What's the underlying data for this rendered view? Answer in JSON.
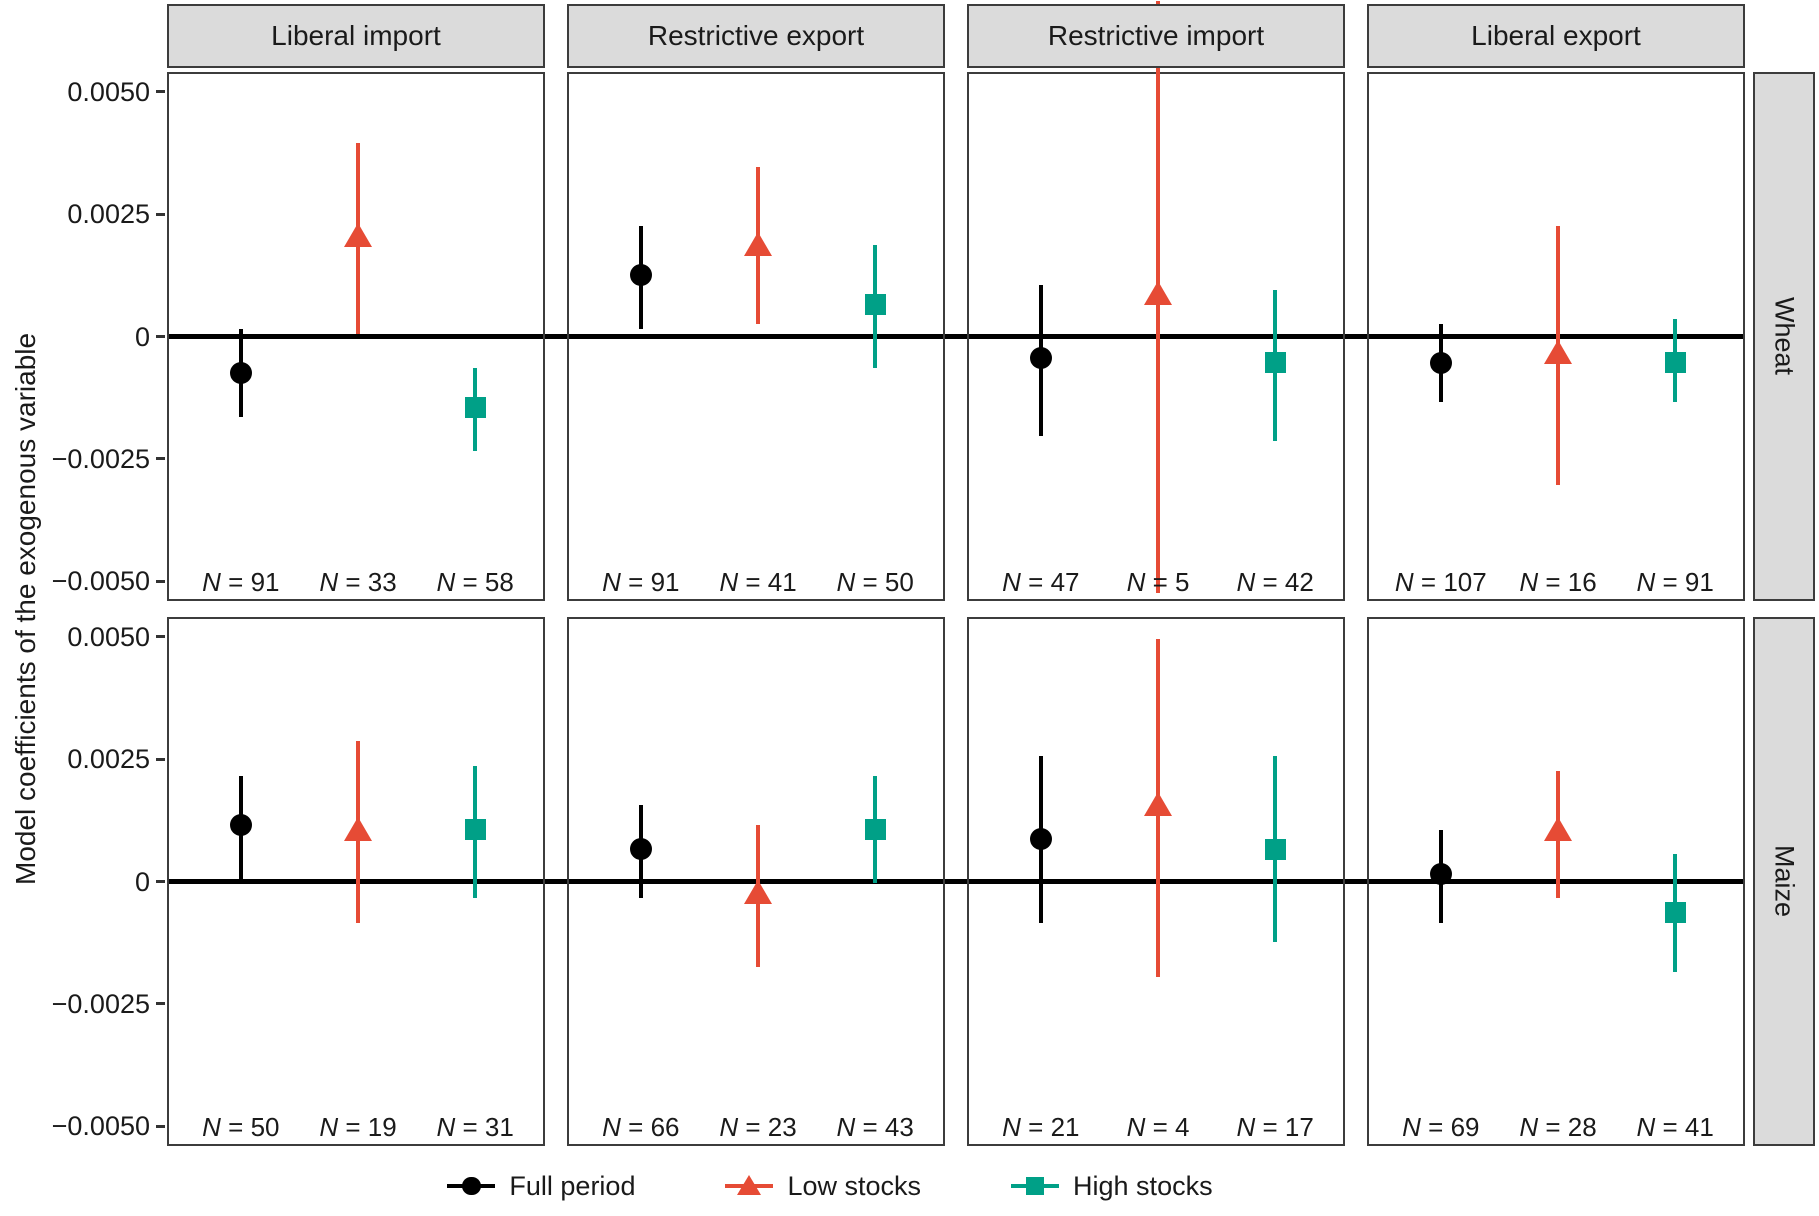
{
  "chart_data": {
    "type": "scatter",
    "subtype": "faceted-errorbar-coefficient-plot",
    "ylabel": "Model coefficients of the exogenous variable",
    "facet_cols": [
      "Liberal import",
      "Restrictive export",
      "Restrictive import",
      "Liberal export"
    ],
    "facet_rows": [
      "Wheat",
      "Maize"
    ],
    "ylim": [
      -0.0054,
      0.0054
    ],
    "grid": "off",
    "yticks": [
      {
        "value": 0.005,
        "label": "0.0050"
      },
      {
        "value": 0.0025,
        "label": "0.0025"
      },
      {
        "value": 0,
        "label": "0"
      },
      {
        "value": -0.0025,
        "label": "−0.0025"
      },
      {
        "value": -0.005,
        "label": "−0.0050"
      }
    ],
    "zero_reference_line": 0,
    "panels": [
      {
        "row": "Wheat",
        "col": "Liberal import",
        "points": [
          {
            "series": "Full period",
            "est": -0.0007,
            "lo": -0.0016,
            "hi": 0.0002,
            "n_label": "N = 91"
          },
          {
            "series": "Low stocks",
            "est": 0.0021,
            "lo": 0.0001,
            "hi": 0.004,
            "n_label": "N = 33"
          },
          {
            "series": "High stocks",
            "est": -0.0014,
            "lo": -0.0023,
            "hi": -0.0006,
            "n_label": "N = 58"
          }
        ]
      },
      {
        "row": "Wheat",
        "col": "Restrictive export",
        "points": [
          {
            "series": "Full period",
            "est": 0.0013,
            "lo": 0.0002,
            "hi": 0.0023,
            "n_label": "N = 91"
          },
          {
            "series": "Low stocks",
            "est": 0.0019,
            "lo": 0.0003,
            "hi": 0.0035,
            "n_label": "N = 41"
          },
          {
            "series": "High stocks",
            "est": 0.0007,
            "lo": -0.0006,
            "hi": 0.0019,
            "n_label": "N = 50"
          }
        ]
      },
      {
        "row": "Wheat",
        "col": "Restrictive import",
        "points": [
          {
            "series": "Full period",
            "est": -0.0004,
            "lo": -0.002,
            "hi": 0.0011,
            "n_label": "N = 47"
          },
          {
            "series": "Low stocks",
            "est": 0.0009,
            "lo": -0.0052,
            "hi": 0.0069,
            "hi_clipped": true,
            "n_label": "N = 5"
          },
          {
            "series": "High stocks",
            "est": -0.0005,
            "lo": -0.0021,
            "hi": 0.001,
            "n_label": "N = 42"
          }
        ]
      },
      {
        "row": "Wheat",
        "col": "Liberal export",
        "points": [
          {
            "series": "Full period",
            "est": -0.0005,
            "lo": -0.0013,
            "hi": 0.0003,
            "n_label": "N = 107"
          },
          {
            "series": "Low stocks",
            "est": -0.0003,
            "lo": -0.003,
            "hi": 0.0023,
            "n_label": "N = 16"
          },
          {
            "series": "High stocks",
            "est": -0.0005,
            "lo": -0.0013,
            "hi": 0.0004,
            "n_label": "N = 91"
          }
        ]
      },
      {
        "row": "Maize",
        "col": "Liberal import",
        "points": [
          {
            "series": "Full period",
            "est": 0.0012,
            "lo": 0.0,
            "hi": 0.0022,
            "n_label": "N = 50"
          },
          {
            "series": "Low stocks",
            "est": 0.0011,
            "lo": -0.0008,
            "hi": 0.0029,
            "n_label": "N = 19"
          },
          {
            "series": "High stocks",
            "est": 0.0011,
            "lo": -0.0003,
            "hi": 0.0024,
            "n_label": "N = 31"
          }
        ]
      },
      {
        "row": "Maize",
        "col": "Restrictive export",
        "points": [
          {
            "series": "Full period",
            "est": 0.0007,
            "lo": -0.0003,
            "hi": 0.0016,
            "n_label": "N = 66"
          },
          {
            "series": "Low stocks",
            "est": -0.0002,
            "lo": -0.0017,
            "hi": 0.0012,
            "n_label": "N = 23"
          },
          {
            "series": "High stocks",
            "est": 0.0011,
            "lo": 0.0,
            "hi": 0.0022,
            "n_label": "N = 43"
          }
        ]
      },
      {
        "row": "Maize",
        "col": "Restrictive import",
        "points": [
          {
            "series": "Full period",
            "est": 0.0009,
            "lo": -0.0008,
            "hi": 0.0026,
            "n_label": "N = 21"
          },
          {
            "series": "Low stocks",
            "est": 0.0016,
            "lo": -0.0019,
            "hi": 0.005,
            "n_label": "N = 4"
          },
          {
            "series": "High stocks",
            "est": 0.0007,
            "lo": -0.0012,
            "hi": 0.0026,
            "n_label": "N = 17"
          }
        ]
      },
      {
        "row": "Maize",
        "col": "Liberal export",
        "points": [
          {
            "series": "Full period",
            "est": 0.0002,
            "lo": -0.0008,
            "hi": 0.0011,
            "n_label": "N = 69"
          },
          {
            "series": "Low stocks",
            "est": 0.0011,
            "lo": -0.0003,
            "hi": 0.0023,
            "n_label": "N = 28"
          },
          {
            "series": "High stocks",
            "est": -0.0006,
            "lo": -0.0018,
            "hi": 0.0006,
            "n_label": "N = 41"
          }
        ]
      }
    ],
    "legend_position": "bottom-center"
  },
  "legend": {
    "items": [
      {
        "label": "Full period",
        "marker": "circle",
        "color": "#000000"
      },
      {
        "label": "Low stocks",
        "marker": "triangle",
        "color": "#E64B35"
      },
      {
        "label": "High stocks",
        "marker": "square",
        "color": "#00A087"
      }
    ]
  },
  "colors": {
    "full_period": "#000000",
    "low_stocks": "#E64B35",
    "high_stocks": "#00A087",
    "facet_strip_background": "#DBDBDB",
    "panel_border": "#3C3C3C",
    "text": "#1A1A1A"
  }
}
